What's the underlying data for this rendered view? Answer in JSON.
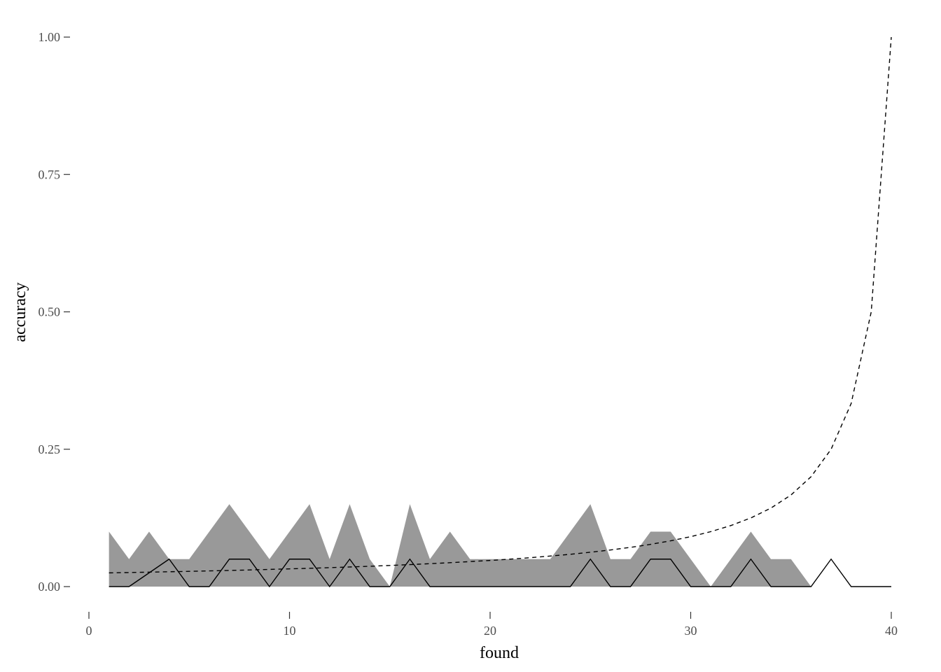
{
  "chart_data": {
    "type": "area",
    "xlabel": "found",
    "ylabel": "accuracy",
    "xlim": [
      0,
      40
    ],
    "ylim": [
      0,
      1
    ],
    "x_ticks": [
      0,
      10,
      20,
      30,
      40
    ],
    "x_tick_labels": [
      "0",
      "10",
      "20",
      "30",
      "40"
    ],
    "y_ticks": [
      0,
      0.25,
      0.5,
      0.75,
      1
    ],
    "y_tick_labels": [
      "0.00",
      "0.25",
      "0.50",
      "0.75",
      "1.00"
    ],
    "grid": false,
    "legend": "none",
    "colors": {
      "band": "#999999",
      "line": "#000000",
      "reference": "#000000"
    },
    "series": [
      {
        "role": "band",
        "x": [
          1,
          2,
          3,
          4,
          5,
          6,
          7,
          8,
          9,
          10,
          11,
          12,
          13,
          14,
          15,
          16,
          17,
          18,
          19,
          20,
          21,
          22,
          23,
          24,
          25,
          26,
          27,
          28,
          29,
          30,
          31,
          32,
          33,
          34,
          35,
          36
        ],
        "values": [
          0.1,
          0.05,
          0.1,
          0.05,
          0.05,
          0.1,
          0.15,
          0.1,
          0.05,
          0.1,
          0.15,
          0.05,
          0.15,
          0.05,
          0.0,
          0.15,
          0.05,
          0.1,
          0.05,
          0.05,
          0.05,
          0.05,
          0.05,
          0.1,
          0.15,
          0.05,
          0.05,
          0.1,
          0.1,
          0.05,
          0.0,
          0.05,
          0.1,
          0.05,
          0.05,
          0.0
        ]
      },
      {
        "role": "line",
        "x": [
          1,
          2,
          3,
          4,
          5,
          6,
          7,
          8,
          9,
          10,
          11,
          12,
          13,
          14,
          15,
          16,
          17,
          18,
          19,
          20,
          21,
          22,
          23,
          24,
          25,
          26,
          27,
          28,
          29,
          30,
          31,
          32,
          33,
          34,
          35,
          36,
          37,
          38,
          39,
          40
        ],
        "values": [
          0,
          0,
          0.025,
          0.05,
          0,
          0,
          0.05,
          0.05,
          0,
          0.05,
          0.05,
          0,
          0.05,
          0,
          0,
          0.05,
          0,
          0,
          0,
          0,
          0,
          0,
          0,
          0,
          0.05,
          0,
          0,
          0.05,
          0.05,
          0,
          0,
          0,
          0.05,
          0,
          0,
          0,
          0.05,
          0,
          0,
          0
        ]
      },
      {
        "role": "reference",
        "line_style": "dashed",
        "x": [
          1,
          2,
          3,
          4,
          5,
          6,
          7,
          8,
          9,
          10,
          11,
          12,
          13,
          14,
          15,
          16,
          17,
          18,
          19,
          20,
          21,
          22,
          23,
          24,
          25,
          26,
          27,
          28,
          29,
          30,
          31,
          32,
          33,
          34,
          35,
          36,
          37,
          38,
          39,
          40
        ],
        "values": [
          0.025,
          0.0256,
          0.0263,
          0.027,
          0.0278,
          0.0286,
          0.0294,
          0.0303,
          0.0313,
          0.0323,
          0.0333,
          0.0345,
          0.0357,
          0.037,
          0.0385,
          0.04,
          0.0417,
          0.0435,
          0.0455,
          0.0476,
          0.05,
          0.0526,
          0.0556,
          0.0588,
          0.0625,
          0.0667,
          0.0714,
          0.0769,
          0.0833,
          0.0909,
          0.1,
          0.1111,
          0.125,
          0.1429,
          0.1667,
          0.2,
          0.25,
          0.3333,
          0.5,
          1.0
        ]
      }
    ]
  }
}
